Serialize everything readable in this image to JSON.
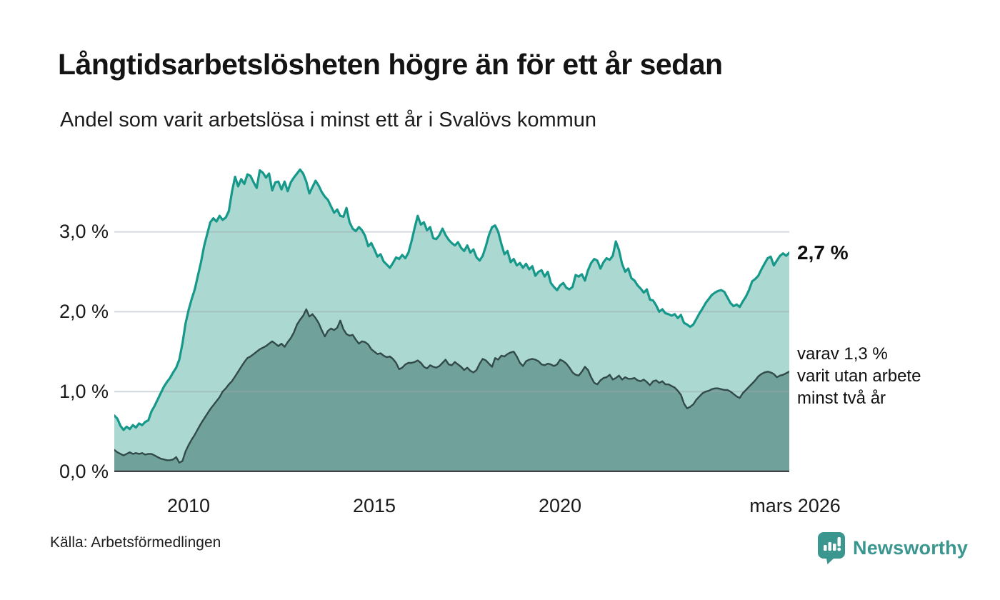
{
  "header": {
    "title": "Långtidsarbetslösheten högre än för ett år sedan",
    "subtitle": "Andel som varit arbetslösa i minst ett år i Svalövs kommun"
  },
  "annotations": {
    "latest_value": "2,7 %",
    "secondary_line1": "varav 1,3 %",
    "secondary_line2": "varit utan arbete",
    "secondary_line3": "minst två år"
  },
  "footer": {
    "source": "Källa: Arbetsförmedlingen",
    "brand": "Newsworthy"
  },
  "colors": {
    "series1_line": "#16988a",
    "series1_fill": "#abd9d2",
    "series2_line": "#324a4b",
    "series2_fill": "#70a19b",
    "gridline": "rgba(158,166,176,0.45)",
    "axis": "#3e4244",
    "brand_teal": "#3a968f"
  },
  "chart_data": {
    "type": "area",
    "title": "Långtidsarbetslösheten högre än för ett år sedan",
    "subtitle": "Andel som varit arbetslösa i minst ett år i Svalövs kommun",
    "unit": "%",
    "frequency": "monthly",
    "start_year": 2008,
    "x_range": [
      2008.0,
      2026.1667
    ],
    "y_max": 3.864,
    "grid": "horizontal",
    "legend": "none",
    "x_ticks": [
      {
        "v": 2010,
        "label": "2010"
      },
      {
        "v": 2015,
        "label": "2015"
      },
      {
        "v": 2020,
        "label": "2020"
      },
      {
        "v": 2026.1667,
        "label": "mars 2026"
      }
    ],
    "y_ticks": [
      {
        "v": 0,
        "label": "0,0 %"
      },
      {
        "v": 1,
        "label": "1,0 %"
      },
      {
        "v": 2,
        "label": "2,0 %"
      },
      {
        "v": 3,
        "label": "3,0 %"
      }
    ],
    "series": [
      {
        "name": "Andel arbetslösa minst ett år",
        "latest_label": "2,7 %",
        "color": "#16988a",
        "fill": "#abd9d2",
        "stroke_width": 3.2,
        "values": [
          0.7,
          0.66,
          0.57,
          0.52,
          0.56,
          0.53,
          0.58,
          0.55,
          0.6,
          0.58,
          0.62,
          0.64,
          0.75,
          0.82,
          0.9,
          0.98,
          1.06,
          1.12,
          1.17,
          1.24,
          1.3,
          1.4,
          1.6,
          1.85,
          2.02,
          2.16,
          2.28,
          2.45,
          2.62,
          2.82,
          2.97,
          3.12,
          3.17,
          3.13,
          3.2,
          3.15,
          3.18,
          3.26,
          3.5,
          3.69,
          3.57,
          3.66,
          3.6,
          3.72,
          3.7,
          3.62,
          3.55,
          3.77,
          3.74,
          3.68,
          3.73,
          3.52,
          3.62,
          3.63,
          3.53,
          3.63,
          3.51,
          3.62,
          3.68,
          3.73,
          3.78,
          3.73,
          3.63,
          3.48,
          3.56,
          3.64,
          3.58,
          3.5,
          3.44,
          3.4,
          3.32,
          3.24,
          3.28,
          3.2,
          3.19,
          3.3,
          3.12,
          3.04,
          3.01,
          3.06,
          3.02,
          2.95,
          2.82,
          2.86,
          2.78,
          2.69,
          2.72,
          2.63,
          2.59,
          2.55,
          2.61,
          2.68,
          2.66,
          2.71,
          2.67,
          2.74,
          2.88,
          3.05,
          3.2,
          3.09,
          3.12,
          3.02,
          3.06,
          2.92,
          2.91,
          2.96,
          3.04,
          2.96,
          2.9,
          2.86,
          2.83,
          2.87,
          2.8,
          2.76,
          2.83,
          2.74,
          2.78,
          2.68,
          2.64,
          2.7,
          2.82,
          2.96,
          3.06,
          3.08,
          3.0,
          2.85,
          2.72,
          2.76,
          2.62,
          2.66,
          2.58,
          2.61,
          2.55,
          2.6,
          2.53,
          2.57,
          2.45,
          2.5,
          2.52,
          2.44,
          2.5,
          2.36,
          2.31,
          2.27,
          2.33,
          2.36,
          2.3,
          2.28,
          2.31,
          2.46,
          2.44,
          2.47,
          2.39,
          2.52,
          2.61,
          2.66,
          2.64,
          2.54,
          2.62,
          2.67,
          2.65,
          2.7,
          2.88,
          2.77,
          2.6,
          2.5,
          2.54,
          2.42,
          2.39,
          2.33,
          2.29,
          2.24,
          2.28,
          2.15,
          2.14,
          2.08,
          2.0,
          2.03,
          1.98,
          1.97,
          1.95,
          1.97,
          1.92,
          1.96,
          1.86,
          1.84,
          1.81,
          1.84,
          1.91,
          1.98,
          2.04,
          2.11,
          2.16,
          2.21,
          2.24,
          2.26,
          2.27,
          2.25,
          2.18,
          2.11,
          2.07,
          2.09,
          2.06,
          2.13,
          2.19,
          2.27,
          2.38,
          2.41,
          2.45,
          2.53,
          2.6,
          2.67,
          2.69,
          2.58,
          2.64,
          2.7,
          2.73,
          2.7,
          2.74
        ]
      },
      {
        "name": "varav arbetslösa minst två år",
        "latest_label": "1,3 %",
        "color": "#324a4b",
        "fill": "#70a19b",
        "stroke_width": 2.4,
        "values": [
          0.27,
          0.24,
          0.22,
          0.2,
          0.22,
          0.24,
          0.22,
          0.23,
          0.22,
          0.23,
          0.21,
          0.22,
          0.22,
          0.2,
          0.18,
          0.16,
          0.15,
          0.14,
          0.14,
          0.15,
          0.18,
          0.11,
          0.13,
          0.25,
          0.33,
          0.4,
          0.46,
          0.53,
          0.6,
          0.66,
          0.72,
          0.78,
          0.83,
          0.88,
          0.93,
          1.0,
          1.04,
          1.09,
          1.13,
          1.19,
          1.25,
          1.31,
          1.37,
          1.42,
          1.44,
          1.47,
          1.5,
          1.53,
          1.55,
          1.57,
          1.6,
          1.63,
          1.6,
          1.57,
          1.6,
          1.56,
          1.62,
          1.67,
          1.74,
          1.84,
          1.9,
          1.95,
          2.03,
          1.94,
          1.97,
          1.92,
          1.86,
          1.77,
          1.69,
          1.76,
          1.79,
          1.77,
          1.8,
          1.89,
          1.78,
          1.72,
          1.7,
          1.71,
          1.65,
          1.6,
          1.63,
          1.62,
          1.59,
          1.53,
          1.5,
          1.47,
          1.48,
          1.45,
          1.43,
          1.44,
          1.41,
          1.36,
          1.28,
          1.3,
          1.34,
          1.36,
          1.36,
          1.37,
          1.39,
          1.36,
          1.31,
          1.29,
          1.33,
          1.31,
          1.3,
          1.32,
          1.36,
          1.4,
          1.34,
          1.33,
          1.37,
          1.34,
          1.31,
          1.27,
          1.3,
          1.26,
          1.24,
          1.27,
          1.35,
          1.41,
          1.39,
          1.35,
          1.31,
          1.42,
          1.4,
          1.45,
          1.44,
          1.47,
          1.49,
          1.5,
          1.44,
          1.36,
          1.32,
          1.38,
          1.4,
          1.41,
          1.4,
          1.38,
          1.34,
          1.33,
          1.35,
          1.34,
          1.32,
          1.34,
          1.4,
          1.38,
          1.35,
          1.3,
          1.24,
          1.21,
          1.2,
          1.25,
          1.31,
          1.27,
          1.18,
          1.11,
          1.09,
          1.14,
          1.17,
          1.18,
          1.21,
          1.15,
          1.17,
          1.2,
          1.15,
          1.18,
          1.16,
          1.16,
          1.17,
          1.14,
          1.13,
          1.15,
          1.12,
          1.08,
          1.13,
          1.14,
          1.11,
          1.13,
          1.09,
          1.09,
          1.07,
          1.05,
          1.01,
          0.96,
          0.85,
          0.79,
          0.81,
          0.84,
          0.9,
          0.94,
          0.98,
          1.0,
          1.01,
          1.03,
          1.04,
          1.04,
          1.03,
          1.02,
          1.02,
          1.0,
          0.97,
          0.94,
          0.92,
          0.98,
          1.02,
          1.06,
          1.1,
          1.14,
          1.19,
          1.22,
          1.24,
          1.25,
          1.24,
          1.22,
          1.18,
          1.2,
          1.21,
          1.23,
          1.25
        ]
      }
    ]
  }
}
